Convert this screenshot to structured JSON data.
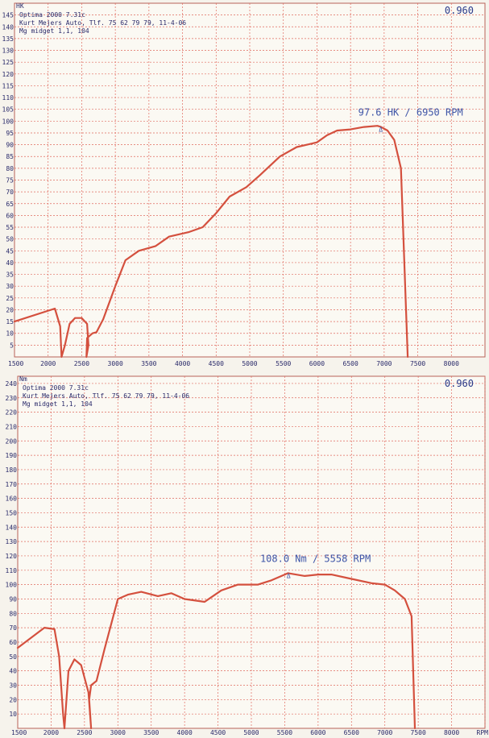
{
  "chart_data": [
    {
      "type": "line",
      "unit_label": "HK",
      "correction": "0.960",
      "info_lines": [
        "Optima 2000 7.31c",
        "Kurt Mejers Auto, Tlf. 75 62 79 79, 11-4-06",
        "Mg midget 1,1, 104"
      ],
      "peak_label": "97.6 HK / 6950 RPM",
      "peak_point": [
        6950,
        97.6
      ],
      "marker": "Δ",
      "xlim": [
        1500,
        8500
      ],
      "ylim": [
        0,
        150
      ],
      "x_ticks": [
        1500,
        2000,
        2500,
        3000,
        3500,
        4000,
        4500,
        5000,
        5500,
        6000,
        6500,
        7000,
        7500,
        8000
      ],
      "x_tick_labels": [
        "1500",
        "2000",
        "2500",
        "3000",
        "3500",
        "4000",
        "4500",
        "5000",
        "5500",
        "6000",
        "6500",
        "7000",
        "7500",
        "8000"
      ],
      "y_ticks": [
        5,
        10,
        15,
        20,
        25,
        30,
        35,
        40,
        45,
        50,
        55,
        60,
        65,
        70,
        75,
        80,
        85,
        90,
        95,
        100,
        105,
        110,
        115,
        120,
        125,
        130,
        135,
        140,
        145
      ],
      "y_tick_labels": [
        "5",
        "10",
        "15",
        "20",
        "25",
        "30",
        "35",
        "40",
        "45",
        "50",
        "55",
        "60",
        "65",
        "70",
        "75",
        "80",
        "85",
        "90",
        "95",
        "100",
        "105",
        "110",
        "115",
        "120",
        "125",
        "130",
        "135",
        "140",
        "145"
      ],
      "grid": true,
      "series": [
        {
          "x": [
            1500,
            2100,
            2180,
            2200,
            2250,
            2320,
            2400,
            2500,
            2580,
            2600,
            2570,
            2580,
            2660,
            2720,
            2820,
            3000,
            3150,
            3350,
            3600,
            3800,
            4100,
            4300,
            4500,
            4700,
            4950,
            5150,
            5450,
            5700,
            6000,
            6150,
            6300,
            6500,
            6700,
            6900,
            6950,
            7050,
            7150,
            7250,
            7300,
            7350
          ],
          "y": [
            15,
            20.5,
            13,
            0,
            5,
            14,
            16.5,
            16.5,
            14,
            5,
            0,
            8,
            10,
            10.5,
            16,
            30,
            41,
            45,
            47,
            51,
            53,
            55,
            61,
            68,
            72,
            77,
            85,
            89,
            91,
            94,
            96,
            96.5,
            97.5,
            98,
            97.6,
            96,
            92,
            80,
            40,
            0
          ]
        }
      ]
    },
    {
      "type": "line",
      "unit_label": "Nm",
      "correction": "0.960",
      "info_lines": [
        "Optima 2000 7.31c",
        "Kurt Mejers Auto, Tlf. 75 62 79 79, 11-4-06",
        "Mg midget 1,1, 104"
      ],
      "peak_label": "108.0 Nm / 5558 RPM",
      "peak_point": [
        5558,
        108.0
      ],
      "marker": "Δ",
      "xlim": [
        1500,
        8500
      ],
      "ylim": [
        0,
        245
      ],
      "x_ticks": [
        1500,
        2000,
        2500,
        3000,
        3500,
        4000,
        4500,
        5000,
        5500,
        6000,
        6500,
        7000,
        7500,
        8000,
        8500
      ],
      "x_tick_labels": [
        "1500",
        "2000",
        "2500",
        "3000",
        "3500",
        "4000",
        "4500",
        "5000",
        "5500",
        "6000",
        "6500",
        "7000",
        "7500",
        "8000",
        "RPM"
      ],
      "y_ticks": [
        10,
        20,
        30,
        40,
        50,
        60,
        70,
        80,
        90,
        100,
        110,
        120,
        130,
        140,
        150,
        160,
        170,
        180,
        190,
        200,
        210,
        220,
        230,
        240
      ],
      "y_tick_labels": [
        "10",
        "20",
        "30",
        "40",
        "50",
        "60",
        "70",
        "80",
        "90",
        "100",
        "110",
        "120",
        "130",
        "140",
        "150",
        "160",
        "170",
        "180",
        "190",
        "200",
        "210",
        "220",
        "230",
        "240"
      ],
      "grid": true,
      "series": [
        {
          "x": [
            1500,
            1900,
            2050,
            2120,
            2180,
            2200,
            2260,
            2350,
            2450,
            2560,
            2600,
            2570,
            2600,
            2680,
            2800,
            3000,
            3150,
            3350,
            3600,
            3800,
            4000,
            4300,
            4550,
            4800,
            5100,
            5300,
            5550,
            5800,
            6000,
            6200,
            6500,
            6800,
            7000,
            7150,
            7300,
            7400,
            7450
          ],
          "y": [
            56,
            70,
            69,
            50,
            10,
            0,
            40,
            48,
            44,
            25,
            0,
            20,
            30,
            33,
            55,
            90,
            93,
            95,
            92,
            94,
            90,
            88,
            96,
            100,
            100,
            103,
            108,
            106,
            107,
            107,
            104,
            101,
            100,
            96,
            90,
            78,
            0
          ]
        }
      ]
    }
  ]
}
